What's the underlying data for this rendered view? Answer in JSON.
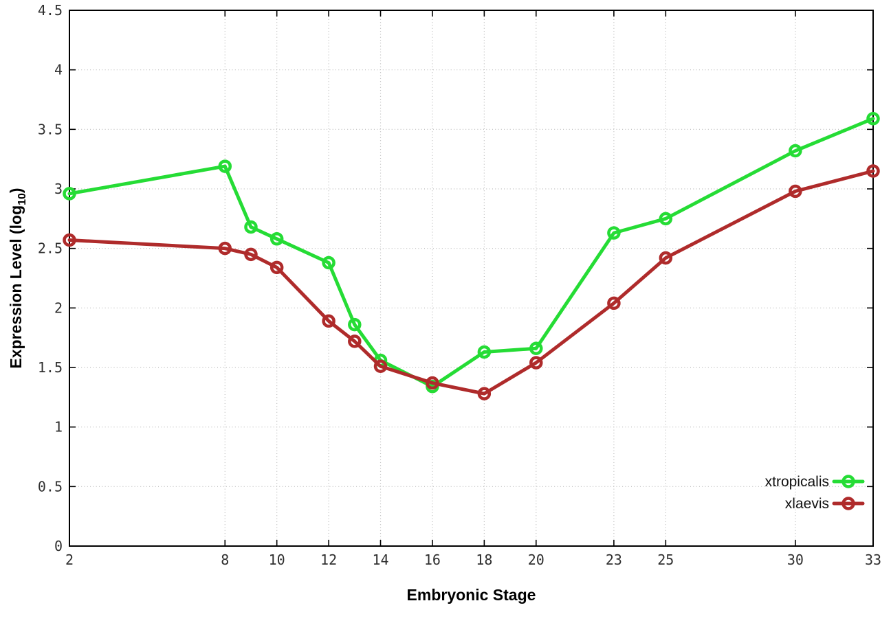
{
  "chart_data": {
    "type": "line",
    "title": "",
    "xlabel": "Embryonic Stage",
    "ylabel": {
      "pre": "Expression Level (log",
      "sub": "10",
      "post": ")"
    },
    "x": [
      2,
      8,
      9,
      10,
      12,
      13,
      14,
      16,
      18,
      20,
      23,
      25,
      30,
      33
    ],
    "series": [
      {
        "name": "xtropicalis",
        "color": "#25dc35",
        "values": [
          2.96,
          3.19,
          2.68,
          2.58,
          2.38,
          1.86,
          1.56,
          1.34,
          1.63,
          1.66,
          2.63,
          2.75,
          3.32,
          3.59
        ]
      },
      {
        "name": "xlaevis",
        "color": "#af2b2b",
        "values": [
          2.57,
          2.5,
          2.45,
          2.34,
          1.89,
          1.72,
          1.51,
          1.37,
          1.28,
          1.54,
          2.04,
          2.42,
          2.98,
          3.15
        ]
      }
    ],
    "xlim": [
      2,
      33
    ],
    "ylim": [
      0,
      4.5
    ],
    "x_ticks": [
      2,
      8,
      10,
      12,
      14,
      16,
      18,
      20,
      23,
      25,
      30,
      33
    ],
    "x_tick_labels": [
      "2",
      "8",
      "10",
      "12",
      "14",
      "16",
      "18",
      "20",
      "23",
      "25",
      "30",
      "33"
    ],
    "y_ticks": [
      0,
      0.5,
      1,
      1.5,
      2,
      2.5,
      3,
      3.5,
      4,
      4.5
    ],
    "y_tick_labels": [
      "0",
      "0.5",
      "1",
      "1.5",
      "2",
      "2.5",
      "3",
      "3.5",
      "4",
      "4.5"
    ],
    "grid": true,
    "legend_position": "bottom-right",
    "marker": "open-circle"
  },
  "colors": {
    "background": "#ffffff",
    "border": "#000000",
    "grid": "#b9b9b9",
    "tick_text": "#2f2f2f",
    "legend_text": "#111111"
  }
}
